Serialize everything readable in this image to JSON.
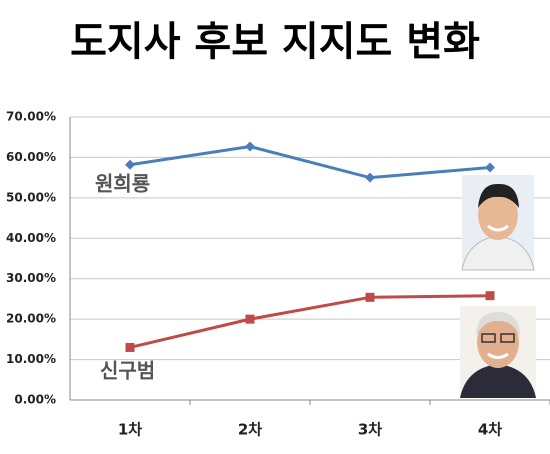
{
  "chart_data": {
    "type": "line",
    "title": "도지사 후보 지지도 변화",
    "categories": [
      "1차",
      "2차",
      "3차",
      "4차"
    ],
    "series": [
      {
        "name": "원희룡",
        "color": "#4a7ebb",
        "values": [
          58.2,
          62.7,
          55.0,
          57.5
        ]
      },
      {
        "name": "신구범",
        "color": "#be4b48",
        "values": [
          13.0,
          20.0,
          25.4,
          25.8
        ]
      }
    ],
    "ylim": [
      0,
      70
    ],
    "yticks": [
      {
        "value": 0,
        "label": "0.00%"
      },
      {
        "value": 10,
        "label": "10.00%"
      },
      {
        "value": 20,
        "label": "20.00%"
      },
      {
        "value": 30,
        "label": "30.00%"
      },
      {
        "value": 40,
        "label": "40.00%"
      },
      {
        "value": 50,
        "label": "50.00%"
      },
      {
        "value": 60,
        "label": "60.00%"
      },
      {
        "value": 70,
        "label": "70.00%"
      }
    ],
    "grid": true
  }
}
